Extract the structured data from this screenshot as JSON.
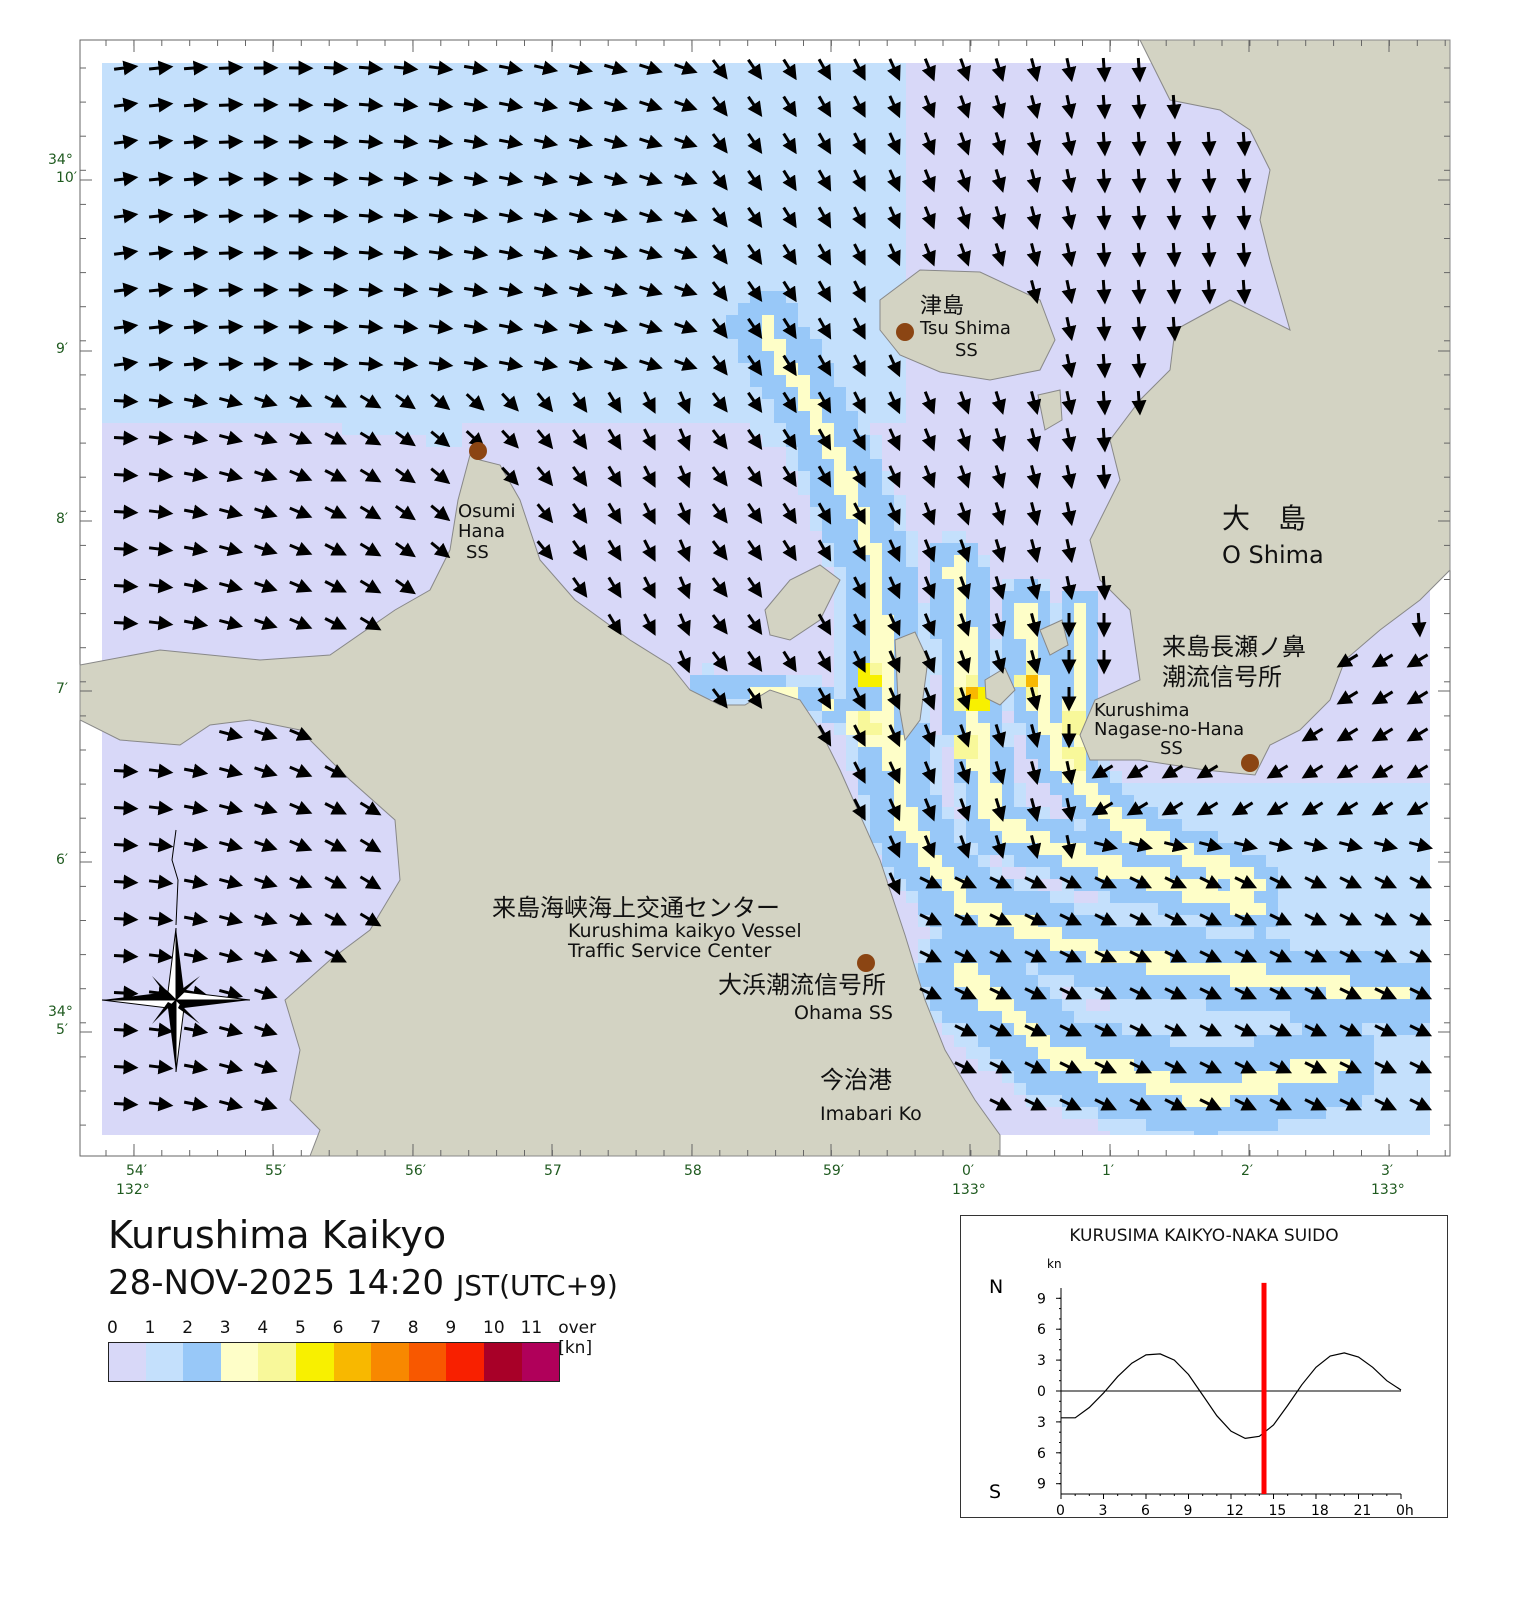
{
  "map": {
    "lat_labels": [
      {
        "deg": "34°",
        "min": "10′"
      },
      {
        "deg": "",
        "min": "9′"
      },
      {
        "deg": "",
        "min": "8′"
      },
      {
        "deg": "",
        "min": "7′"
      },
      {
        "deg": "",
        "min": "6′"
      },
      {
        "deg": "34°",
        "min": "5′"
      }
    ],
    "lon_labels": [
      {
        "min": "54′",
        "deg": "132°"
      },
      {
        "min": "55′",
        "deg": ""
      },
      {
        "min": "56′",
        "deg": ""
      },
      {
        "min": "57",
        "deg": ""
      },
      {
        "min": "58",
        "deg": ""
      },
      {
        "min": "59′",
        "deg": ""
      },
      {
        "min": "0′",
        "deg": "133°"
      },
      {
        "min": "1′",
        "deg": ""
      },
      {
        "min": "2′",
        "deg": ""
      },
      {
        "min": "3′",
        "deg": "133°"
      }
    ],
    "places": {
      "tsushima_jp": "津島",
      "tsushima_en": "Tsu Shima",
      "tsushima_ss": "SS",
      "osumi_1": "Osumi",
      "osumi_2": "Hana",
      "osumi_3": "SS",
      "oshima_jp": "大　島",
      "oshima_en": "O Shima",
      "nagase_jp1": "来島長瀬ノ鼻",
      "nagase_jp2": "潮流信号所",
      "nagase_en1": "Kurushima",
      "nagase_en2": "Nagase-no-Hana",
      "nagase_en3": "SS",
      "vts_jp": "来島海峡海上交通センター",
      "vts_en1": "Kurushima kaikyo Vessel",
      "vts_en2": "Traffic Service Center",
      "ohama_jp": "大浜潮流信号所",
      "ohama_en": "Ohama SS",
      "imabari_jp": "今治港",
      "imabari_en": "Imabari Ko"
    },
    "colors": {
      "land": "#d3d3c3",
      "coast": "#888888",
      "arrow": "#000000",
      "station": "#8b4513",
      "frame": "#666666"
    }
  },
  "title": {
    "main": "Kurushima Kaikyo",
    "time": "28-NOV-2025 14:20",
    "tz": "JST(UTC+9)"
  },
  "legend": {
    "labels": [
      "0",
      "1",
      "2",
      "3",
      "4",
      "5",
      "6",
      "7",
      "8",
      "9",
      "10",
      "11",
      "over [kn]"
    ],
    "colors": [
      "#d8d8f8",
      "#c4e0fc",
      "#98c8f8",
      "#fefec8",
      "#f8f89a",
      "#f8f000",
      "#f8b800",
      "#f88800",
      "#f85800",
      "#f82000",
      "#a80028",
      "#b0005a"
    ]
  },
  "tide": {
    "title": "KURUSIMA KAIKYO-NAKA SUIDO",
    "unit": "kn",
    "north": "N",
    "south": "S",
    "y_ticks": [
      "9",
      "6",
      "3",
      "0",
      "3",
      "6",
      "9"
    ],
    "x_ticks": [
      "0",
      "3",
      "6",
      "9",
      "12",
      "15",
      "18",
      "21",
      "0h"
    ],
    "current_time_hour": 14.33,
    "curve": {
      "hours": [
        0,
        1,
        2,
        3,
        4,
        5,
        6,
        7,
        8,
        9,
        10,
        11,
        12,
        13,
        14,
        15,
        16,
        17,
        18,
        19,
        20,
        21,
        22,
        23,
        24
      ],
      "knots": [
        -2.6,
        -2.6,
        -1.6,
        -0.2,
        1.4,
        2.7,
        3.5,
        3.6,
        3.0,
        1.6,
        -0.4,
        -2.4,
        -3.9,
        -4.6,
        -4.4,
        -3.3,
        -1.4,
        0.6,
        2.3,
        3.4,
        3.7,
        3.3,
        2.3,
        1.0,
        0.1
      ]
    }
  }
}
